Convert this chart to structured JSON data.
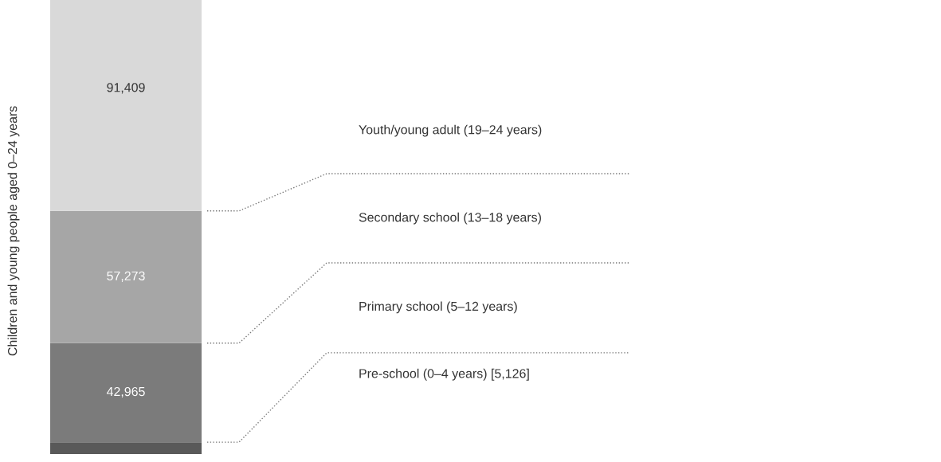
{
  "chart_data": {
    "type": "bar",
    "stacked": true,
    "categories": [
      null
    ],
    "ylabel": "Children and young people aged 0–24 years",
    "series": [
      {
        "name": "Pre-school (0–4 years) [5,126]",
        "color": "#595959",
        "values": [
          5126
        ],
        "value_labels": [
          null
        ]
      },
      {
        "name": "Primary school (5–12 years)",
        "color": "#7b7b7b",
        "values": [
          42965
        ],
        "value_labels": [
          "42,965"
        ]
      },
      {
        "name": "Secondary school (13–18 years)",
        "color": "#a6a6a6",
        "values": [
          57273
        ],
        "value_labels": [
          "57,273"
        ]
      },
      {
        "name": "Youth/young adult (19–24 years)",
        "color": "#d9d9d9",
        "values": [
          91409
        ],
        "value_labels": [
          "91,409"
        ]
      }
    ]
  }
}
